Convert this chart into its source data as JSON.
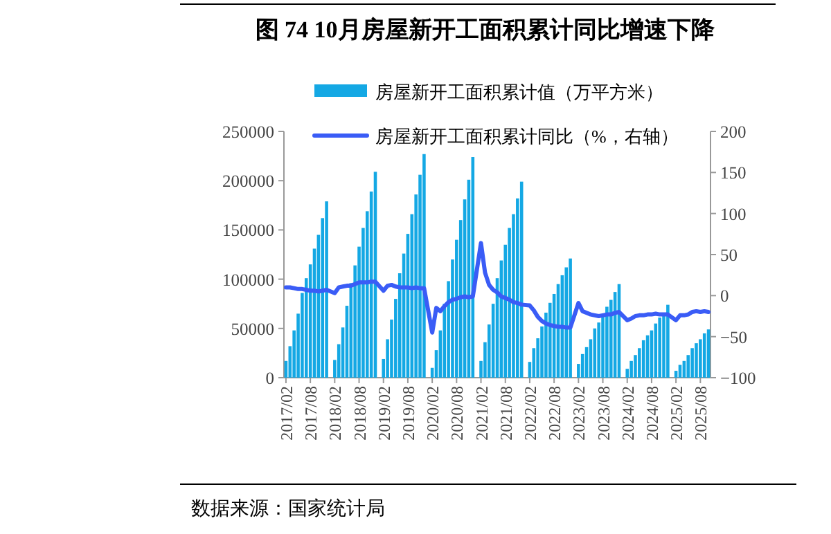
{
  "chart_data": {
    "type": "bar",
    "title": "图 74 10月房屋新开工面积累计同比增速下降",
    "categories": [
      "2017/02",
      null,
      null,
      null,
      null,
      null,
      "2017/08",
      null,
      null,
      null,
      null,
      null,
      "2018/02",
      null,
      null,
      null,
      null,
      null,
      "2018/08",
      null,
      null,
      null,
      null,
      null,
      "2019/02",
      null,
      null,
      null,
      null,
      null,
      "2019/08",
      null,
      null,
      null,
      null,
      null,
      "2020/02",
      null,
      null,
      null,
      null,
      null,
      "2020/08",
      null,
      null,
      null,
      null,
      null,
      "2021/02",
      null,
      null,
      null,
      null,
      null,
      "2021/08",
      null,
      null,
      null,
      null,
      null,
      "2022/02",
      null,
      null,
      null,
      null,
      null,
      "2022/08",
      null,
      null,
      null,
      null,
      null,
      "2023/02",
      null,
      null,
      null,
      null,
      null,
      "2023/08",
      null,
      null,
      null,
      null,
      null,
      "2024/02",
      null,
      null,
      null,
      null,
      null,
      "2024/08",
      null,
      null,
      null,
      null,
      null,
      "2025/02",
      null,
      null,
      null,
      null,
      null,
      "2025/08",
      null,
      null
    ],
    "series": [
      {
        "name": "房屋新开工面积累计值（万平方米）",
        "color": "#14a8e4",
        "values": [
          17000,
          32000,
          48000,
          65000,
          86000,
          101000,
          115000,
          131000,
          145000,
          162000,
          179000,
          null,
          18000,
          34000,
          51000,
          73000,
          96000,
          114000,
          133000,
          152000,
          169000,
          189000,
          209000,
          null,
          19000,
          39000,
          59000,
          80000,
          106000,
          126000,
          146000,
          166000,
          186000,
          206000,
          227000,
          null,
          10000,
          28000,
          48000,
          75000,
          98000,
          120000,
          140000,
          160000,
          181000,
          201000,
          224000,
          null,
          17000,
          36000,
          54000,
          75000,
          101000,
          119000,
          135000,
          152000,
          166000,
          182000,
          199000,
          null,
          16000,
          30000,
          40000,
          52000,
          66000,
          76000,
          85000,
          95000,
          104000,
          112000,
          121000,
          null,
          14000,
          24000,
          31000,
          39000,
          50000,
          56000,
          63000,
          72000,
          79000,
          87000,
          95000,
          null,
          9000,
          17000,
          23000,
          30000,
          38000,
          43000,
          48000,
          55000,
          61000,
          66000,
          74000,
          null,
          7000,
          13000,
          17000,
          23000,
          30000,
          35000,
          39000,
          45000,
          49000
        ]
      },
      {
        "name": "房屋新开工面积累计同比（%，右轴）",
        "type": "line",
        "axis": "y2",
        "color": "#3a5cf6",
        "values": [
          10,
          10,
          9,
          8,
          8,
          7,
          6,
          6,
          5,
          6,
          7,
          null,
          3,
          10,
          11,
          12,
          12,
          14,
          16,
          16,
          16,
          17,
          17,
          null,
          6,
          12,
          13,
          11,
          10,
          10,
          10,
          9,
          10,
          9,
          9,
          null,
          -45,
          -15,
          -19,
          -13,
          -8,
          -5,
          -4,
          -2,
          -1,
          -2,
          -1,
          null,
          64,
          28,
          13,
          7,
          4,
          -1,
          -3,
          -5,
          -8,
          -9,
          -11,
          null,
          -12,
          -18,
          -26,
          -31,
          -34,
          -36,
          -37,
          -38,
          -38,
          -39,
          -39,
          null,
          -9,
          -19,
          -21,
          -23,
          -24,
          -25,
          -24,
          -23,
          -23,
          -21,
          -20,
          null,
          -30,
          -28,
          -25,
          -24,
          -24,
          -23,
          -23,
          -22,
          -23,
          -23,
          -23,
          null,
          -30,
          -24,
          -24,
          -23,
          -20,
          -19,
          -20,
          -19,
          -20
        ]
      }
    ],
    "ylim": [
      0,
      250000
    ],
    "yticks": [
      0,
      50000,
      100000,
      150000,
      200000,
      250000
    ],
    "y2lim": [
      -100,
      200
    ],
    "y2ticks": [
      -100,
      -50,
      0,
      50,
      100,
      150,
      200
    ],
    "legend": "top",
    "grid": false,
    "annotations": [
      "数据来源：国家统计局"
    ]
  }
}
